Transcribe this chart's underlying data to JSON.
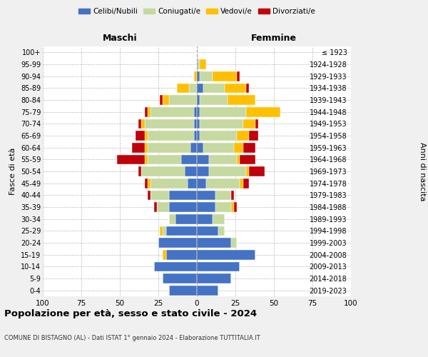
{
  "age_groups": [
    "0-4",
    "5-9",
    "10-14",
    "15-19",
    "20-24",
    "25-29",
    "30-34",
    "35-39",
    "40-44",
    "45-49",
    "50-54",
    "55-59",
    "60-64",
    "65-69",
    "70-74",
    "75-79",
    "80-84",
    "85-89",
    "90-94",
    "95-99",
    "100+"
  ],
  "birth_years": [
    "2019-2023",
    "2014-2018",
    "2009-2013",
    "2004-2008",
    "1999-2003",
    "1994-1998",
    "1989-1993",
    "1984-1988",
    "1979-1983",
    "1974-1978",
    "1969-1973",
    "1964-1968",
    "1959-1963",
    "1954-1958",
    "1949-1953",
    "1944-1948",
    "1939-1943",
    "1934-1938",
    "1929-1933",
    "1924-1928",
    "≤ 1923"
  ],
  "colors": {
    "celibi": "#4472c4",
    "coniugati": "#c5d9a0",
    "vedovi": "#ffc000",
    "divorziati": "#c0000a"
  },
  "maschi": {
    "celibi": [
      18,
      22,
      28,
      20,
      25,
      20,
      14,
      18,
      18,
      6,
      8,
      10,
      4,
      2,
      2,
      2,
      0,
      0,
      0,
      0,
      0
    ],
    "coniugati": [
      0,
      0,
      0,
      0,
      0,
      2,
      4,
      8,
      12,
      24,
      28,
      22,
      28,
      30,
      32,
      28,
      18,
      5,
      0,
      0,
      0
    ],
    "vedovi": [
      0,
      0,
      0,
      2,
      0,
      2,
      0,
      0,
      0,
      2,
      0,
      2,
      2,
      2,
      2,
      2,
      4,
      8,
      2,
      0,
      0
    ],
    "divorziati": [
      0,
      0,
      0,
      0,
      0,
      0,
      0,
      2,
      2,
      2,
      2,
      18,
      8,
      6,
      2,
      2,
      2,
      0,
      0,
      0,
      0
    ]
  },
  "femmine": {
    "celibi": [
      14,
      22,
      28,
      38,
      22,
      14,
      10,
      12,
      12,
      6,
      8,
      8,
      4,
      2,
      2,
      2,
      2,
      4,
      2,
      0,
      0
    ],
    "coniugati": [
      0,
      0,
      0,
      0,
      4,
      4,
      8,
      10,
      10,
      22,
      24,
      18,
      20,
      24,
      28,
      30,
      18,
      14,
      8,
      2,
      0
    ],
    "vedovi": [
      0,
      0,
      0,
      0,
      0,
      0,
      0,
      2,
      0,
      2,
      2,
      2,
      6,
      8,
      8,
      22,
      18,
      14,
      16,
      4,
      0
    ],
    "divorziati": [
      0,
      0,
      0,
      0,
      0,
      0,
      0,
      2,
      2,
      4,
      10,
      10,
      8,
      6,
      2,
      0,
      0,
      2,
      2,
      0,
      0
    ]
  },
  "xlim": 100,
  "xtick_step": 25,
  "title": "Popolazione per età, sesso e stato civile - 2024",
  "subtitle": "COMUNE DI BISTAGNO (AL) - Dati ISTAT 1° gennaio 2024 - Elaborazione TUTTITALIA.IT",
  "ylabel_left": "Fasce di età",
  "ylabel_right": "Anni di nascita",
  "xlabel_left": "Maschi",
  "xlabel_right": "Femmine",
  "legend_labels": [
    "Celibi/Nubili",
    "Coniugati/e",
    "Vedovi/e",
    "Divorziati/e"
  ],
  "bg_color": "#f0f0f0",
  "plot_bg": "#ffffff"
}
